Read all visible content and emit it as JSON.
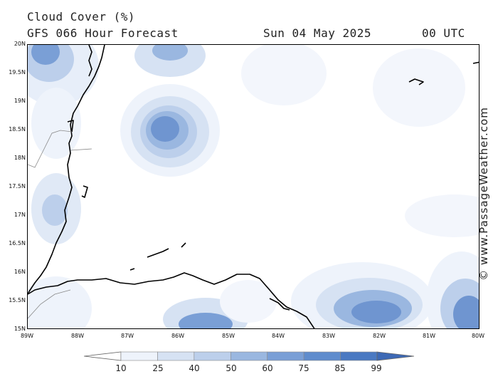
{
  "header": {
    "title": "Cloud Cover (%)",
    "forecast": "GFS 066 Hour Forecast",
    "date": "Sun 04 May 2025",
    "time": "00 UTC"
  },
  "credit": "© www.PassageWeather.com",
  "axes": {
    "latitudes": [
      "20N",
      "19.5N",
      "19N",
      "18.5N",
      "18N",
      "17.5N",
      "17N",
      "16.5N",
      "16N",
      "15.5N",
      "15N"
    ],
    "longitudes": [
      "89W",
      "88W",
      "87W",
      "86W",
      "85W",
      "84W",
      "83W",
      "82W",
      "81W",
      "80W"
    ]
  },
  "legend": {
    "labels": [
      "10",
      "25",
      "40",
      "50",
      "60",
      "75",
      "85",
      "99"
    ],
    "colors": [
      "#ffffff",
      "#eef3fb",
      "#d6e2f3",
      "#bccfeb",
      "#9ab7e0",
      "#7a9fd6",
      "#5f8ccd",
      "#4a79c2",
      "#3d69b5"
    ]
  }
}
